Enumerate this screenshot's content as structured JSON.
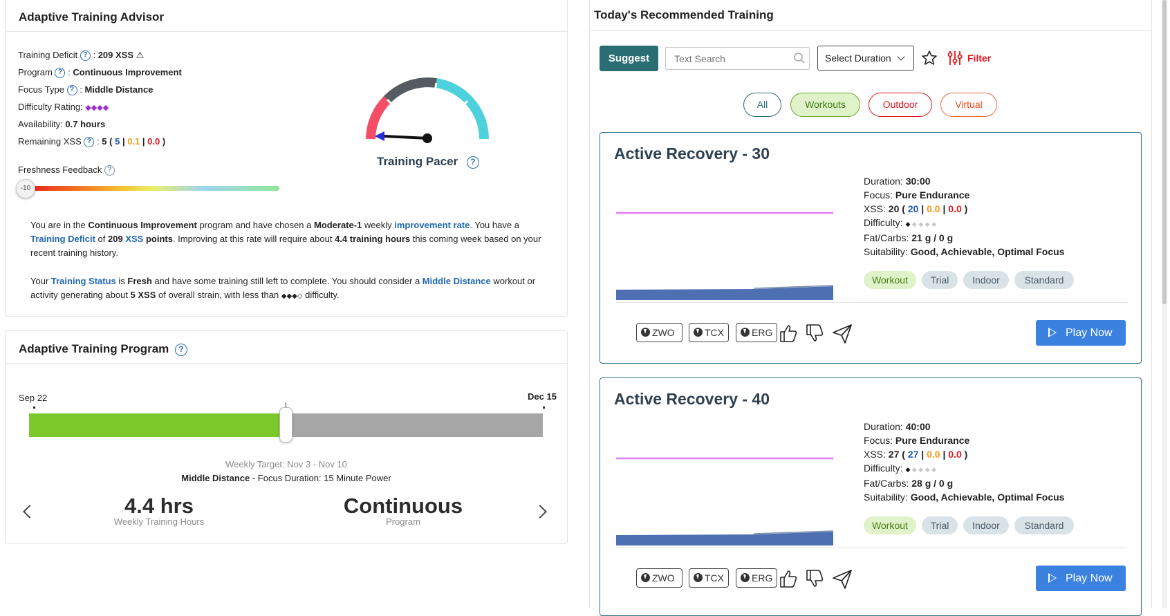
{
  "advisor": {
    "title": "Adaptive Training Advisor",
    "deficit_label": "Training Deficit",
    "deficit_value": "209 XSS",
    "program_label": "Program",
    "program_value": "Continuous Improvement",
    "focus_label": "Focus Type",
    "focus_value": "Middle Distance",
    "difficulty_label": "Difficulty Rating:",
    "difficulty_value": "◆◆◆◆",
    "availability_label": "Availability:",
    "availability_value": "0.7 hours",
    "remaining_label": "Remaining XSS",
    "remaining_total": "5",
    "remaining_low": "5",
    "remaining_high": "0.1",
    "remaining_peak": "0.0",
    "freshness_label": "Freshness Feedback",
    "freshness_value": "-10",
    "pacer_label": "Training Pacer",
    "p1": {
      "t1": "You are in the ",
      "b1": "Continuous Improvement",
      "t2": " program and have chosen a ",
      "b2": "Moderate-1",
      "t3": " weekly ",
      "l1": "improvement rate",
      "t4": ". You have a ",
      "l2": "Training Deficit",
      "t5": " of ",
      "b3": "209",
      "l3": "XSS",
      "b4": "points",
      "t6": ". Improving at this rate will require about ",
      "b5": "4.4 training hours",
      "t7": " this coming week based on your recent training history."
    },
    "p2": {
      "t1": "Your ",
      "l1": "Training Status",
      "t2": " is ",
      "b1": "Fresh",
      "t3": " and have some training still left to complete. You should consider a ",
      "l2": "Middle Distance",
      "t4": " workout or activity generating about ",
      "b2": "5 XSS",
      "t5": " of overall strain, with less than ",
      "d": "◆◆◆◇",
      "t6": " difficulty."
    }
  },
  "program": {
    "title": "Adaptive Training Program",
    "start": "Sep 22",
    "end": "Dec 15",
    "progress": 0.5,
    "weekly_target": "Weekly Target: Nov 3 - Nov 10",
    "focus_bold": "Middle Distance",
    "focus_rest": " - Focus Duration: 15 Minute Power",
    "hours_value": "4.4 hrs",
    "hours_label": "Weekly Training Hours",
    "prog_value": "Continuous",
    "prog_label": "Program"
  },
  "recommended": {
    "title": "Today's Recommended Training",
    "suggest": "Suggest",
    "search_placeholder": "Text Search",
    "duration_select": "Select Duration",
    "filter": "Filter",
    "pills": [
      "All",
      "Workouts",
      "Outdoor",
      "Virtual"
    ],
    "workouts": [
      {
        "title": "Active Recovery - 30",
        "duration_label": "Duration:",
        "duration": "30:00",
        "focus_label": "Focus:",
        "focus": "Pure Endurance",
        "xss_label": "XSS:",
        "xss": "20",
        "xss_low": "20",
        "xss_high": "0.0",
        "xss_peak": "0.0",
        "difficulty_label": "Difficulty:",
        "difficulty_on": "◆",
        "difficulty_off": " ◆ ◆ ◆ ◆",
        "fat_label": "Fat/Carbs:",
        "fat": "21 g / 0 g",
        "suit_label": "Suitability:",
        "suit": "Good, Achievable, Optimal Focus",
        "tags": [
          "Workout",
          "Trial",
          "Indoor",
          "Standard"
        ],
        "files": [
          "ZWO",
          "TCX",
          "ERG"
        ],
        "play": "Play Now"
      },
      {
        "title": "Active Recovery - 40",
        "duration_label": "Duration:",
        "duration": "40:00",
        "focus_label": "Focus:",
        "focus": "Pure Endurance",
        "xss_label": "XSS:",
        "xss": "27",
        "xss_low": "27",
        "xss_high": "0.0",
        "xss_peak": "0.0",
        "difficulty_label": "Difficulty:",
        "difficulty_on": "◆",
        "difficulty_off": " ◆ ◆ ◆ ◆",
        "fat_label": "Fat/Carbs:",
        "fat": "28 g / 0 g",
        "suit_label": "Suitability:",
        "suit": "Good, Achievable, Optimal Focus",
        "tags": [
          "Workout",
          "Trial",
          "Indoor",
          "Standard"
        ],
        "files": [
          "ZWO",
          "TCX",
          "ERG"
        ],
        "play": "Play Now"
      }
    ]
  },
  "colors": {
    "accent": "#2a6d72",
    "link": "#1f66b2",
    "play": "#3b82e0",
    "progress": "#7ac82a",
    "power_line": "#e07af0",
    "profile": "#4f6fb3"
  }
}
